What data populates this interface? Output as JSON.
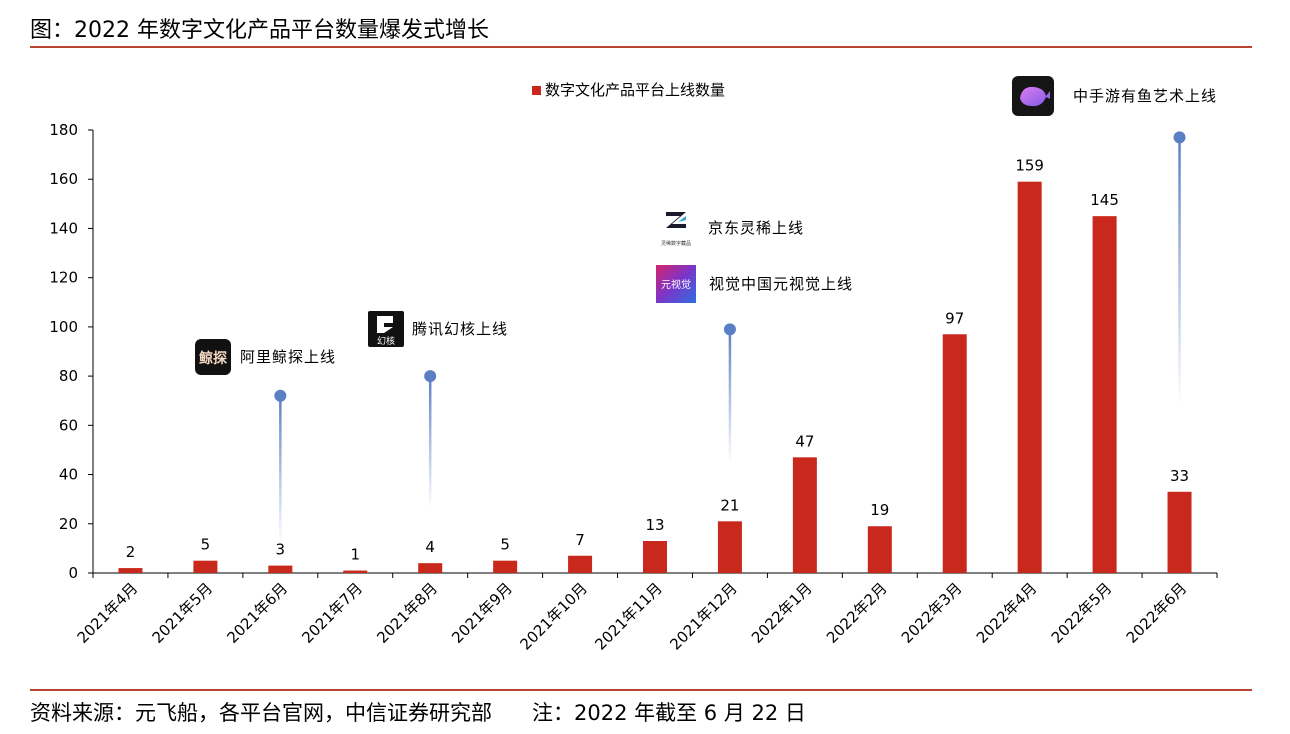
{
  "header": {
    "title": "图：2022 年数字文化产品平台数量爆发式增长"
  },
  "footer": {
    "source": "资料来源：元飞船，各平台官网，中信证券研究部",
    "note": "注：2022 年截至 6 月 22 日"
  },
  "colors": {
    "bar": "#c9281c",
    "rule": "#b8452f",
    "pin": "#5b7fc4"
  },
  "chart_data": {
    "type": "bar",
    "title": "",
    "xlabel": "",
    "ylabel": "",
    "legend": {
      "label": "数字文化产品平台上线数量",
      "placement": "top-center"
    },
    "ylim": [
      0,
      180
    ],
    "yticks": [
      0,
      20,
      40,
      60,
      80,
      100,
      120,
      140,
      160,
      180
    ],
    "grid": false,
    "categories": [
      "2021年4月",
      "2021年5月",
      "2021年6月",
      "2021年7月",
      "2021年8月",
      "2021年9月",
      "2021年10月",
      "2021年11月",
      "2021年12月",
      "2022年1月",
      "2022年2月",
      "2022年3月",
      "2022年4月",
      "2022年5月",
      "2022年6月"
    ],
    "series": [
      {
        "name": "数字文化产品平台上线数量",
        "values": [
          2,
          5,
          3,
          1,
          4,
          5,
          7,
          13,
          21,
          47,
          19,
          97,
          159,
          145,
          33
        ]
      }
    ],
    "annotations": [
      {
        "category_index": 2,
        "pin_value": 72,
        "labels": [
          {
            "text": "阿里鲸探上线",
            "logo": "鲸探",
            "logo_icon": "jingtan-logo-icon"
          }
        ]
      },
      {
        "category_index": 4,
        "pin_value": 80,
        "labels": [
          {
            "text": "腾讯幻核上线",
            "logo": "幻核",
            "logo_icon": "huanhe-logo-icon"
          }
        ]
      },
      {
        "category_index": 8,
        "pin_value": 99,
        "labels": [
          {
            "text": "京东灵稀上线",
            "logo": "灵稀数字藏品",
            "logo_icon": "lingxi-logo-icon"
          },
          {
            "text": "视觉中国元视觉上线",
            "logo": "元视觉",
            "logo_icon": "yuanshijue-logo-icon"
          }
        ]
      },
      {
        "category_index": 14,
        "pin_value": 177,
        "labels": [
          {
            "text": "中手游有鱼艺术上线",
            "logo": "",
            "logo_icon": "youyu-whale-logo-icon"
          }
        ]
      }
    ]
  }
}
